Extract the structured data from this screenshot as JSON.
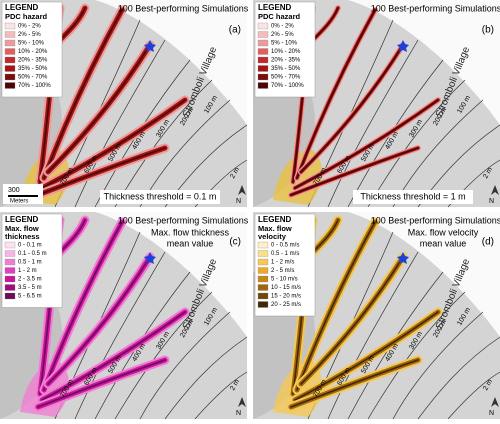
{
  "figure": {
    "contour_labels": [
      "700 m",
      "600 m",
      "500 m",
      "400 m",
      "300 m",
      "200 m",
      "100 m"
    ],
    "coast_label": "2 m",
    "north": "N",
    "scale": {
      "value_label": "300",
      "unit": "Meters"
    },
    "panels": [
      {
        "letter": "(a)",
        "title": "100 Best-performing Simulations",
        "notes": [],
        "footer": "Thickness threshold = 0.1 m",
        "village": "Stromboli Village",
        "legend": {
          "heading": "LEGEND",
          "subheading": "PDC hazard",
          "items": [
            {
              "label": "0% - 2%",
              "color": "#fbe3e3"
            },
            {
              "label": "2% - 5%",
              "color": "#f5bcbc"
            },
            {
              "label": "5% - 10%",
              "color": "#ef9a9a"
            },
            {
              "label": "10% - 20%",
              "color": "#e06060"
            },
            {
              "label": "20% - 35%",
              "color": "#c62828"
            },
            {
              "label": "35% - 50%",
              "color": "#a31515"
            },
            {
              "label": "50% - 70%",
              "color": "#7a0c0c"
            },
            {
              "label": "70% - 100%",
              "color": "#4a0606"
            }
          ]
        }
      },
      {
        "letter": "(b)",
        "title": "100 Best-performing Simulations",
        "notes": [],
        "footer": "Thickness threshold = 1 m",
        "village": "Stromboli Village",
        "legend": {
          "heading": "LEGEND",
          "subheading": "PDC hazard",
          "items": [
            {
              "label": "0% - 2%",
              "color": "#fbe3e3"
            },
            {
              "label": "2% - 5%",
              "color": "#f5bcbc"
            },
            {
              "label": "5% - 10%",
              "color": "#ef9a9a"
            },
            {
              "label": "10% - 20%",
              "color": "#e06060"
            },
            {
              "label": "20% - 35%",
              "color": "#c62828"
            },
            {
              "label": "35% - 50%",
              "color": "#a31515"
            },
            {
              "label": "50% - 70%",
              "color": "#7a0c0c"
            },
            {
              "label": "70% - 100%",
              "color": "#4a0606"
            }
          ]
        }
      },
      {
        "letter": "(c)",
        "title": "100 Best-performing Simulations",
        "notes": [
          "Max. flow thickness",
          "mean value"
        ],
        "footer": null,
        "village": "Stromboli Village",
        "legend": {
          "heading": "LEGEND",
          "subheading": "Max. flow thickness",
          "items": [
            {
              "label": "0 - 0.1 m",
              "color": "#fde0f3"
            },
            {
              "label": "0.1 - 0.5 m",
              "color": "#f9b3e4"
            },
            {
              "label": "0.5 - 1 m",
              "color": "#f07fd2"
            },
            {
              "label": "1 - 2 m",
              "color": "#e23fbd"
            },
            {
              "label": "2 - 3.5 m",
              "color": "#c8169f"
            },
            {
              "label": "3.5 - 5 m",
              "color": "#9c0f7c"
            },
            {
              "label": "5 - 6.5 m",
              "color": "#6b0a55"
            }
          ]
        }
      },
      {
        "letter": "(d)",
        "title": "100 Best-performing Simulations",
        "notes": [
          "Max. flow velocity",
          "mean value"
        ],
        "footer": null,
        "village": "Stromboli Village",
        "legend": {
          "heading": "LEGEND",
          "subheading": "Max. flow velocity",
          "items": [
            {
              "label": "0 - 0.5 m/s",
              "color": "#fdf0c4"
            },
            {
              "label": "0.5 - 1 m/s",
              "color": "#fbe08a"
            },
            {
              "label": "1 - 2 m/s",
              "color": "#f5c855"
            },
            {
              "label": "2 - 5 m/s",
              "color": "#e8a92c"
            },
            {
              "label": "5 - 10 m/s",
              "color": "#c98616"
            },
            {
              "label": "10 - 15 m/s",
              "color": "#a0660e"
            },
            {
              "label": "15 - 20 m/s",
              "color": "#714708"
            },
            {
              "label": "20 - 25 m/s",
              "color": "#3f2805"
            }
          ]
        }
      }
    ]
  }
}
